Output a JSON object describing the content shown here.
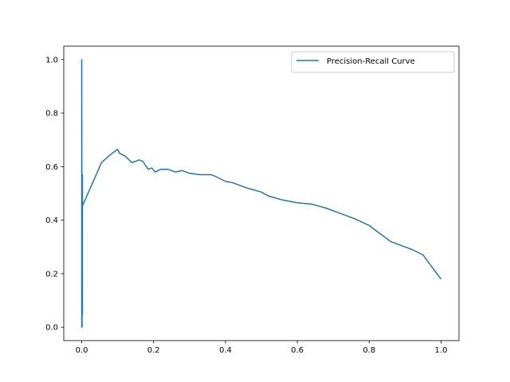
{
  "chart_data": {
    "type": "line",
    "title": "",
    "xlabel": "",
    "ylabel": "",
    "xlim": [
      -0.05,
      1.05
    ],
    "ylim": [
      -0.05,
      1.05
    ],
    "xticks": [
      0.0,
      0.2,
      0.4,
      0.6,
      0.8,
      1.0
    ],
    "xtick_labels": [
      "0.0",
      "0.2",
      "0.4",
      "0.6",
      "0.8",
      "1.0"
    ],
    "yticks": [
      0.0,
      0.2,
      0.4,
      0.6,
      0.8,
      1.0
    ],
    "ytick_labels": [
      "0.0",
      "0.2",
      "0.4",
      "0.6",
      "0.8",
      "1.0"
    ],
    "grid": false,
    "legend_position": "upper right",
    "series": [
      {
        "name": "Precision-Recall Curve",
        "color": "#1f77b4",
        "x": [
          0.0,
          0.0,
          0.001,
          0.001,
          0.002,
          0.002,
          0.001,
          0.001,
          0.055,
          0.08,
          0.1,
          0.105,
          0.12,
          0.14,
          0.16,
          0.17,
          0.185,
          0.195,
          0.205,
          0.22,
          0.24,
          0.26,
          0.28,
          0.3,
          0.33,
          0.36,
          0.37,
          0.4,
          0.42,
          0.46,
          0.5,
          0.52,
          0.56,
          0.6,
          0.64,
          0.68,
          0.72,
          0.76,
          0.8,
          0.82,
          0.86,
          0.9,
          0.92,
          0.95,
          0.98,
          1.0
        ],
        "y": [
          0.0,
          1.0,
          0.0,
          0.57,
          0.57,
          0.05,
          0.15,
          0.45,
          0.615,
          0.645,
          0.665,
          0.65,
          0.64,
          0.615,
          0.625,
          0.62,
          0.59,
          0.595,
          0.58,
          0.59,
          0.59,
          0.58,
          0.585,
          0.575,
          0.57,
          0.57,
          0.565,
          0.545,
          0.54,
          0.52,
          0.505,
          0.49,
          0.475,
          0.465,
          0.46,
          0.445,
          0.425,
          0.405,
          0.38,
          0.36,
          0.32,
          0.3,
          0.29,
          0.27,
          0.215,
          0.18
        ]
      }
    ]
  }
}
